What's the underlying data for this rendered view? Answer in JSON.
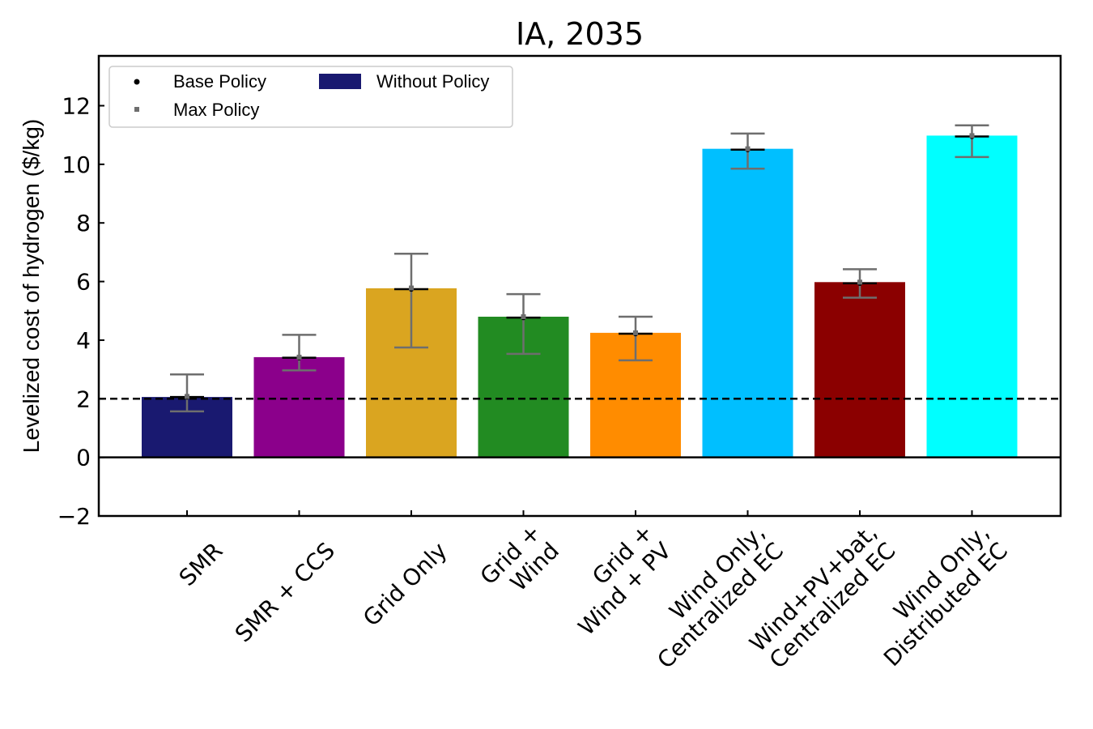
{
  "chart_data": {
    "type": "bar",
    "title": "IA, 2035",
    "ylabel": "Levelized  cost of hydrogen ($/kg)",
    "xlabel": "",
    "ylim": [
      -2,
      13.7
    ],
    "yticks": [
      -2,
      0,
      2,
      4,
      6,
      8,
      10,
      12
    ],
    "ytick_labels": [
      "−2",
      "0",
      "2",
      "4",
      "6",
      "8",
      "10",
      "12"
    ],
    "reference_line": 2,
    "categories": [
      [
        "SMR"
      ],
      [
        "SMR + CCS"
      ],
      [
        "Grid Only"
      ],
      [
        "Grid +",
        "Wind"
      ],
      [
        "Grid +",
        "Wind + PV"
      ],
      [
        "Wind Only,",
        "Centralized EC"
      ],
      [
        "Wind+PV+bat,",
        "Centralized EC"
      ],
      [
        "Wind Only,",
        "Distributed EC"
      ]
    ],
    "series": [
      {
        "name": "Without Policy",
        "values": [
          2.06,
          3.42,
          5.77,
          4.8,
          4.25,
          10.53,
          5.98,
          10.98
        ]
      },
      {
        "name": "Base Policy",
        "values": [
          2.06,
          3.4,
          5.74,
          4.77,
          4.22,
          10.5,
          5.94,
          10.95
        ]
      },
      {
        "name": "Max Policy",
        "values": [
          2.08,
          3.42,
          5.78,
          4.8,
          4.25,
          10.53,
          5.98,
          10.98
        ]
      }
    ],
    "error_low": [
      1.57,
      2.97,
      3.75,
      3.53,
      3.31,
      9.85,
      5.45,
      10.25
    ],
    "error_high": [
      2.83,
      4.18,
      6.95,
      5.57,
      4.8,
      11.05,
      6.42,
      11.33
    ],
    "colors": [
      "#191970",
      "#8B008B",
      "#DAA520",
      "#228B22",
      "#FF8C00",
      "#00BFFF",
      "#8B0000",
      "#00FFFF"
    ],
    "grid": false,
    "legend": {
      "placement": "top-left",
      "entries": [
        {
          "label": "Base Policy",
          "marker": "dot",
          "color": "#000000"
        },
        {
          "label": "Max Policy",
          "marker": "square",
          "color": "#6e6e6e"
        },
        {
          "label": "Without Policy",
          "marker": "bar",
          "color": "#191970"
        }
      ]
    }
  }
}
